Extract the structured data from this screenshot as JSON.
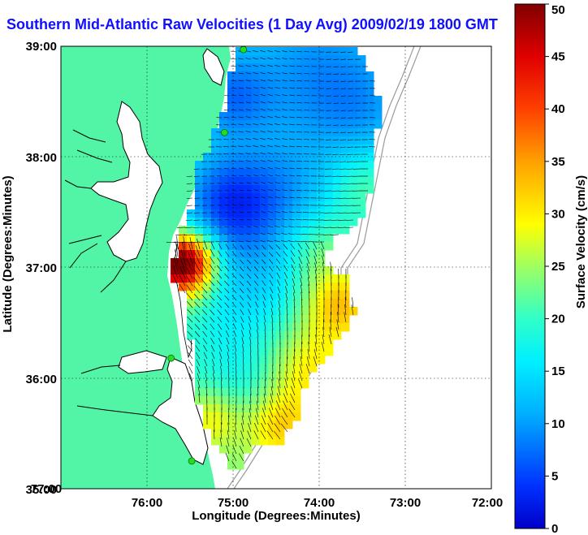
{
  "title": "Southern Mid-Atlantic Raw Velocities (1 Day Avg) 2009/02/19 1800 GMT",
  "map": {
    "xlabel": "Longitude (Degrees:Minutes)",
    "ylabel": "Latitude (Degrees:Minutes)",
    "lon_range": [
      -77,
      -72
    ],
    "lat_range": [
      35,
      39
    ],
    "x_ticks": [
      "77:00",
      "76:00",
      "75:00",
      "74:00",
      "73:00",
      "72:00"
    ],
    "y_ticks": [
      "35:00",
      "36:00",
      "37:00",
      "38:00",
      "39:00"
    ],
    "grid": "dotted",
    "land_color": "#52f5a5",
    "ocean_color": "#ffffff",
    "vector_color": "#000000",
    "stations": [
      {
        "lon": -74.88,
        "lat": 38.97
      },
      {
        "lon": -75.1,
        "lat": 38.22
      },
      {
        "lon": -75.72,
        "lat": 36.18
      },
      {
        "lon": -75.48,
        "lat": 35.25
      }
    ]
  },
  "colorbar": {
    "label": "Surface Velocity (cm/s)",
    "min": 0,
    "max": 50,
    "ticks": [
      "0",
      "5",
      "10",
      "15",
      "20",
      "25",
      "30",
      "35",
      "40",
      "45",
      "50"
    ],
    "colormap": "jet"
  }
}
